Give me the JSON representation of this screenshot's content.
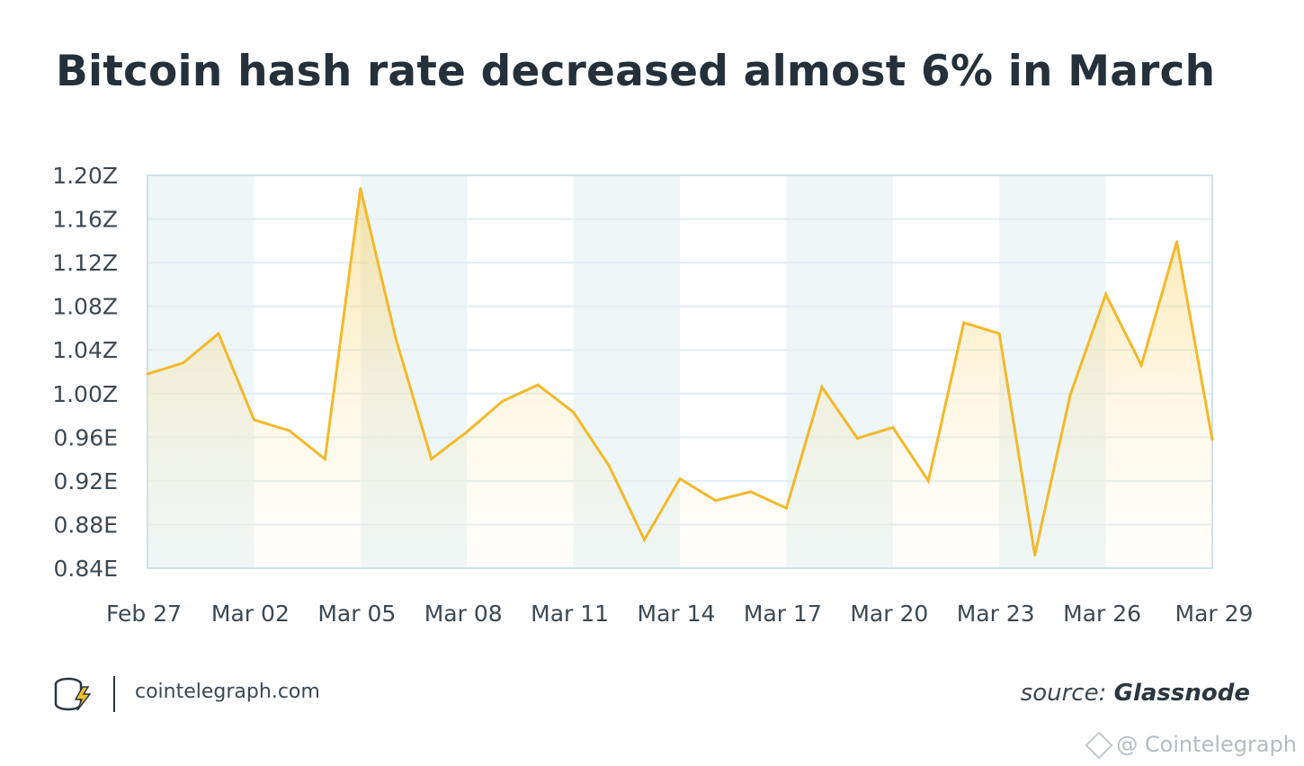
{
  "title": "Bitcoin hash rate decreased almost 6% in March",
  "footer": {
    "site": "cointelegraph.com",
    "source_prefix": "source:",
    "source_name": "Glassnode",
    "watermark": "@ Cointelegraph"
  },
  "colors": {
    "line": "#f2b92a",
    "fill": "#f9d77a",
    "band": "#eef6f8",
    "grid": "#e3edf1",
    "border": "#cfe0e7",
    "text": "#3d4852"
  },
  "chart_data": {
    "type": "area",
    "title": "Bitcoin hash rate decreased almost 6% in March",
    "xlabel": "",
    "ylabel": "",
    "x": [
      "Feb 27",
      "Feb 28",
      "Mar 01",
      "Mar 02",
      "Mar 03",
      "Mar 04",
      "Mar 05",
      "Mar 06",
      "Mar 07",
      "Mar 08",
      "Mar 09",
      "Mar 10",
      "Mar 11",
      "Mar 12",
      "Mar 13",
      "Mar 14",
      "Mar 15",
      "Mar 16",
      "Mar 17",
      "Mar 18",
      "Mar 19",
      "Mar 20",
      "Mar 21",
      "Mar 22",
      "Mar 23",
      "Mar 24",
      "Mar 25",
      "Mar 26",
      "Mar 27",
      "Mar 28",
      "Mar 29"
    ],
    "values": [
      1.018,
      1.028,
      1.055,
      0.976,
      0.966,
      0.94,
      1.188,
      1.05,
      0.94,
      0.965,
      0.993,
      1.008,
      0.983,
      0.934,
      0.866,
      0.922,
      0.902,
      0.91,
      0.895,
      1.006,
      0.959,
      0.969,
      0.92,
      1.065,
      1.055,
      0.852,
      0.999,
      1.091,
      1.026,
      1.139,
      0.958
    ],
    "units": "hash/s (Z = 1e21, E = 1e18)",
    "ylim": [
      0.84,
      1.2
    ],
    "y_ticks": [
      1.2,
      1.16,
      1.12,
      1.08,
      1.04,
      1.0,
      0.96,
      0.92,
      0.88,
      0.84
    ],
    "y_tick_labels": [
      "1.20Z",
      "1.16Z",
      "1.12Z",
      "1.08Z",
      "1.04Z",
      "1.00Z",
      "0.96E",
      "0.92E",
      "0.88E",
      "0.84E"
    ],
    "x_tick_labels": [
      "Feb 27",
      "Mar 02",
      "Mar 05",
      "Mar 08",
      "Mar 11",
      "Mar 14",
      "Mar 17",
      "Mar 20",
      "Mar 23",
      "Mar 26",
      "Mar 29"
    ],
    "x_tick_indices": [
      0,
      3,
      6,
      9,
      12,
      15,
      18,
      21,
      24,
      27,
      30
    ],
    "grid": true,
    "legend": "none"
  }
}
